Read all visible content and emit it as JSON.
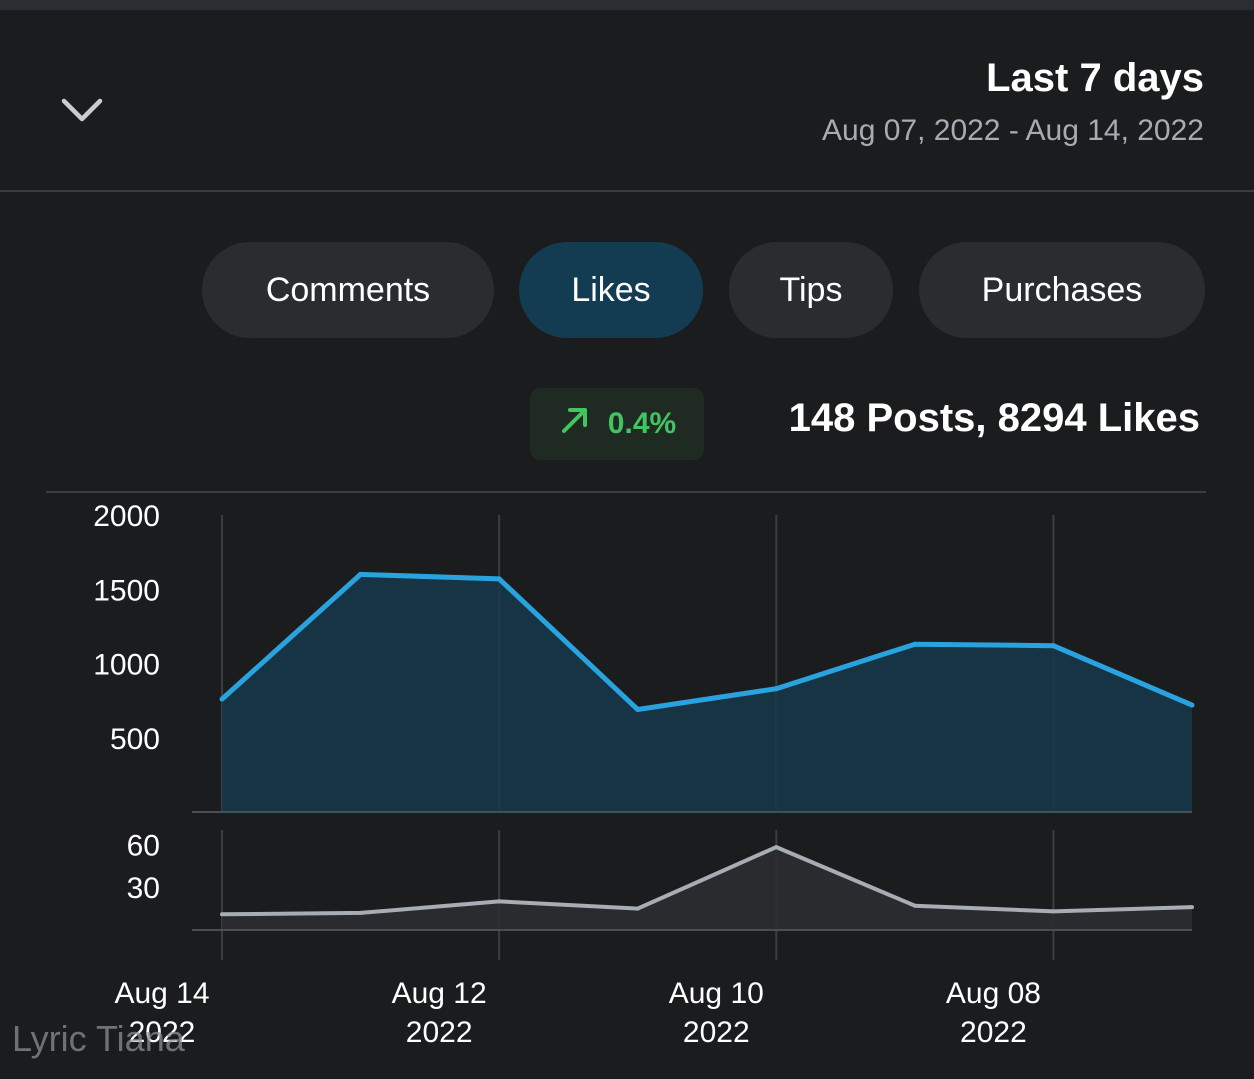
{
  "header": {
    "title": "Last 7 days",
    "subtitle": "Aug 07, 2022 - Aug 14, 2022"
  },
  "tabs": [
    {
      "label": "Comments",
      "active": false
    },
    {
      "label": "Likes",
      "active": true
    },
    {
      "label": "Tips",
      "active": false
    },
    {
      "label": "Purchases",
      "active": false
    }
  ],
  "summary": {
    "text": "148 Posts, 8294 Likes",
    "change": "0.4%",
    "change_color": "#44c461"
  },
  "icons": {
    "dropdown": "chevron-down-icon",
    "trend": "arrow-up-right-icon"
  },
  "colors": {
    "accent": "#29a3df",
    "active_tab": "#133b52",
    "secondary_line": "#a7adb4"
  },
  "watermark": "Lyric Tiana",
  "chart_data": [
    {
      "type": "area",
      "y_ticks": [
        "2000",
        "1500",
        "1000",
        "500"
      ],
      "ylim": [
        0,
        2000
      ],
      "x_labels": [
        {
          "line1": "Aug 14",
          "line2": "2022"
        },
        {
          "line1": "Aug 12",
          "line2": "2022"
        },
        {
          "line1": "Aug 10",
          "line2": "2022"
        },
        {
          "line1": "Aug 08",
          "line2": "2022"
        }
      ],
      "x": [
        "Aug 14",
        "Aug 13",
        "Aug 12",
        "Aug 11",
        "Aug 10",
        "Aug 09",
        "Aug 08",
        "Aug 07"
      ],
      "values": [
        760,
        1600,
        1570,
        690,
        830,
        1130,
        1120,
        720
      ],
      "color": "#29a3df"
    },
    {
      "type": "area",
      "y_ticks": [
        "60",
        "30"
      ],
      "ylim": [
        0,
        70
      ],
      "x": [
        "Aug 14",
        "Aug 13",
        "Aug 12",
        "Aug 11",
        "Aug 10",
        "Aug 09",
        "Aug 08",
        "Aug 07"
      ],
      "values": [
        11,
        12,
        20,
        15,
        58,
        17,
        13,
        16
      ],
      "color": "#a7adb4"
    }
  ]
}
